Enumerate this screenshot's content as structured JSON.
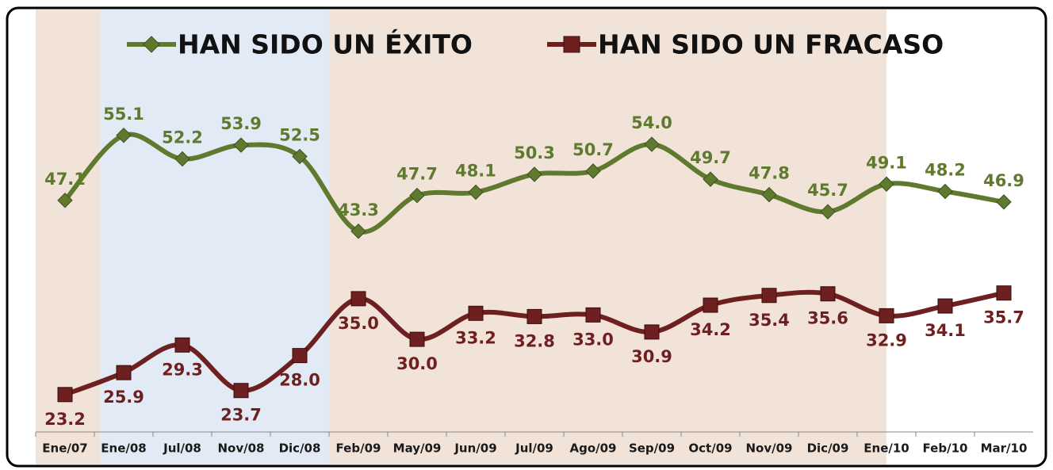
{
  "chart_data": {
    "type": "line",
    "categories": [
      "Ene/07",
      "Ene/08",
      "Jul/08",
      "Nov/08",
      "Dic/08",
      "Feb/09",
      "May/09",
      "Jun/09",
      "Jul/09",
      "Ago/09",
      "Sep/09",
      "Oct/09",
      "Nov/09",
      "Dic/09",
      "Ene/10",
      "Feb/10",
      "Mar/10"
    ],
    "series": [
      {
        "name": "HAN SIDO UN ÉXITO",
        "color": "#5f7a2e",
        "marker": "diamond",
        "values": [
          47.1,
          55.1,
          52.2,
          53.9,
          52.5,
          43.3,
          47.7,
          48.1,
          50.3,
          50.7,
          54.0,
          49.7,
          47.8,
          45.7,
          49.1,
          48.2,
          46.9
        ],
        "value_labels": [
          "47.1",
          "55.1",
          "52.2",
          "53.9",
          "52.5",
          "43.3",
          "47.7",
          "48.1",
          "50.3",
          "50.7",
          "54.0",
          "49.7",
          "47.8",
          "45.7",
          "49.1",
          "48.2",
          "46.9"
        ]
      },
      {
        "name": "HAN SIDO UN FRACASO",
        "color": "#6e1f1f",
        "marker": "square",
        "values": [
          23.2,
          25.9,
          29.3,
          23.7,
          28.0,
          35.0,
          30.0,
          33.2,
          32.8,
          33.0,
          30.9,
          34.2,
          35.4,
          35.6,
          32.9,
          34.1,
          35.7
        ],
        "value_labels": [
          "23.2",
          "25.9",
          "29.3",
          "23.7",
          "28.0",
          "35.0",
          "30.0",
          "33.2",
          "32.8",
          "33.0",
          "30.9",
          "34.2",
          "35.4",
          "35.6",
          "32.9",
          "34.1",
          "35.7"
        ]
      }
    ],
    "ylim": [
      18.6,
      70
    ],
    "legend": "top"
  }
}
